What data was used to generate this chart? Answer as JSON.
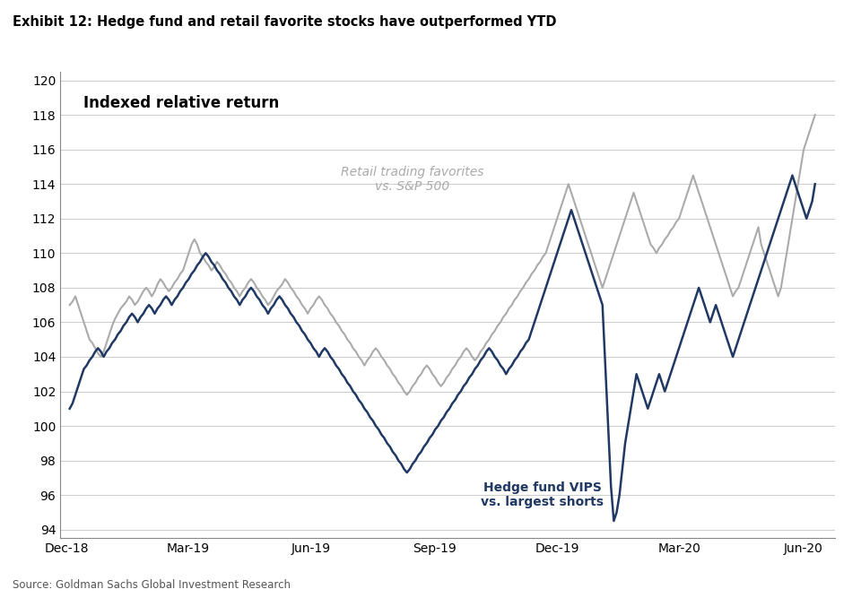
{
  "title": "Exhibit 12: Hedge fund and retail favorite stocks have outperformed YTD",
  "inner_label": "Indexed relative return",
  "source": "Source: Goldman Sachs Global Investment Research",
  "retail_label": "Retail trading favorites\nvs. S&P 500",
  "hf_label": "Hedge fund VIPS\nvs. largest shorts",
  "retail_color": "#aaaaaa",
  "hf_color": "#1f3864",
  "background_color": "#ffffff",
  "ylim": [
    94,
    120
  ],
  "retail": [
    107.0,
    107.2,
    107.5,
    107.0,
    106.5,
    106.0,
    105.5,
    105.0,
    104.8,
    104.5,
    104.2,
    104.0,
    104.3,
    104.8,
    105.3,
    105.8,
    106.2,
    106.5,
    106.8,
    107.0,
    107.2,
    107.5,
    107.3,
    107.0,
    107.2,
    107.5,
    107.8,
    108.0,
    107.8,
    107.5,
    107.8,
    108.2,
    108.5,
    108.3,
    108.0,
    107.8,
    108.0,
    108.3,
    108.5,
    108.8,
    109.0,
    109.5,
    110.0,
    110.5,
    110.8,
    110.5,
    110.0,
    109.8,
    109.5,
    109.3,
    109.0,
    109.2,
    109.5,
    109.3,
    109.0,
    108.8,
    108.5,
    108.3,
    108.0,
    107.8,
    107.5,
    107.8,
    108.0,
    108.3,
    108.5,
    108.3,
    108.0,
    107.8,
    107.5,
    107.3,
    107.0,
    107.2,
    107.5,
    107.8,
    108.0,
    108.2,
    108.5,
    108.3,
    108.0,
    107.8,
    107.5,
    107.3,
    107.0,
    106.8,
    106.5,
    106.8,
    107.0,
    107.3,
    107.5,
    107.3,
    107.0,
    106.8,
    106.5,
    106.3,
    106.0,
    105.8,
    105.5,
    105.3,
    105.0,
    104.8,
    104.5,
    104.3,
    104.0,
    103.8,
    103.5,
    103.8,
    104.0,
    104.3,
    104.5,
    104.3,
    104.0,
    103.8,
    103.5,
    103.3,
    103.0,
    102.8,
    102.5,
    102.3,
    102.0,
    101.8,
    102.0,
    102.3,
    102.5,
    102.8,
    103.0,
    103.3,
    103.5,
    103.3,
    103.0,
    102.8,
    102.5,
    102.3,
    102.5,
    102.8,
    103.0,
    103.3,
    103.5,
    103.8,
    104.0,
    104.3,
    104.5,
    104.3,
    104.0,
    103.8,
    104.0,
    104.3,
    104.5,
    104.8,
    105.0,
    105.3,
    105.5,
    105.8,
    106.0,
    106.3,
    106.5,
    106.8,
    107.0,
    107.3,
    107.5,
    107.8,
    108.0,
    108.3,
    108.5,
    108.8,
    109.0,
    109.3,
    109.5,
    109.8,
    110.0,
    110.5,
    111.0,
    111.5,
    112.0,
    112.5,
    113.0,
    113.5,
    114.0,
    113.5,
    113.0,
    112.5,
    112.0,
    111.5,
    111.0,
    110.5,
    110.0,
    109.5,
    109.0,
    108.5,
    108.0,
    108.5,
    109.0,
    109.5,
    110.0,
    110.5,
    111.0,
    111.5,
    112.0,
    112.5,
    113.0,
    113.5,
    113.0,
    112.5,
    112.0,
    111.5,
    111.0,
    110.5,
    110.3,
    110.0,
    110.3,
    110.5,
    110.8,
    111.0,
    111.3,
    111.5,
    111.8,
    112.0,
    112.5,
    113.0,
    113.5,
    114.0,
    114.5,
    114.0,
    113.5,
    113.0,
    112.5,
    112.0,
    111.5,
    111.0,
    110.5,
    110.0,
    109.5,
    109.0,
    108.5,
    108.0,
    107.5,
    107.8,
    108.0,
    108.5,
    109.0,
    109.5,
    110.0,
    110.5,
    111.0,
    111.5,
    110.5,
    110.0,
    109.5,
    109.0,
    108.5,
    108.0,
    107.5,
    108.0,
    109.0,
    110.0,
    111.0,
    112.0,
    113.0,
    114.0,
    115.0,
    116.0,
    116.5,
    117.0,
    117.5,
    118.0
  ],
  "hf": [
    101.0,
    101.3,
    101.8,
    102.3,
    102.8,
    103.3,
    103.5,
    103.8,
    104.0,
    104.3,
    104.5,
    104.3,
    104.0,
    104.3,
    104.5,
    104.8,
    105.0,
    105.3,
    105.5,
    105.8,
    106.0,
    106.3,
    106.5,
    106.3,
    106.0,
    106.3,
    106.5,
    106.8,
    107.0,
    106.8,
    106.5,
    106.8,
    107.0,
    107.3,
    107.5,
    107.3,
    107.0,
    107.3,
    107.5,
    107.8,
    108.0,
    108.3,
    108.5,
    108.8,
    109.0,
    109.3,
    109.5,
    109.8,
    110.0,
    109.8,
    109.5,
    109.3,
    109.0,
    108.8,
    108.5,
    108.3,
    108.0,
    107.8,
    107.5,
    107.3,
    107.0,
    107.3,
    107.5,
    107.8,
    108.0,
    107.8,
    107.5,
    107.3,
    107.0,
    106.8,
    106.5,
    106.8,
    107.0,
    107.3,
    107.5,
    107.3,
    107.0,
    106.8,
    106.5,
    106.3,
    106.0,
    105.8,
    105.5,
    105.3,
    105.0,
    104.8,
    104.5,
    104.3,
    104.0,
    104.3,
    104.5,
    104.3,
    104.0,
    103.8,
    103.5,
    103.3,
    103.0,
    102.8,
    102.5,
    102.3,
    102.0,
    101.8,
    101.5,
    101.3,
    101.0,
    100.8,
    100.5,
    100.3,
    100.0,
    99.8,
    99.5,
    99.3,
    99.0,
    98.8,
    98.5,
    98.3,
    98.0,
    97.8,
    97.5,
    97.3,
    97.5,
    97.8,
    98.0,
    98.3,
    98.5,
    98.8,
    99.0,
    99.3,
    99.5,
    99.8,
    100.0,
    100.3,
    100.5,
    100.8,
    101.0,
    101.3,
    101.5,
    101.8,
    102.0,
    102.3,
    102.5,
    102.8,
    103.0,
    103.3,
    103.5,
    103.8,
    104.0,
    104.3,
    104.5,
    104.3,
    104.0,
    103.8,
    103.5,
    103.3,
    103.0,
    103.3,
    103.5,
    103.8,
    104.0,
    104.3,
    104.5,
    104.8,
    105.0,
    105.5,
    106.0,
    106.5,
    107.0,
    107.5,
    108.0,
    108.5,
    109.0,
    109.5,
    110.0,
    110.5,
    111.0,
    111.5,
    112.0,
    112.5,
    112.0,
    111.5,
    111.0,
    110.5,
    110.0,
    109.5,
    109.0,
    108.5,
    108.0,
    107.5,
    107.0,
    103.5,
    100.0,
    96.5,
    94.5,
    95.0,
    96.0,
    97.5,
    99.0,
    100.0,
    101.0,
    102.0,
    103.0,
    102.5,
    102.0,
    101.5,
    101.0,
    101.5,
    102.0,
    102.5,
    103.0,
    102.5,
    102.0,
    102.5,
    103.0,
    103.5,
    104.0,
    104.5,
    105.0,
    105.5,
    106.0,
    106.5,
    107.0,
    107.5,
    108.0,
    107.5,
    107.0,
    106.5,
    106.0,
    106.5,
    107.0,
    106.5,
    106.0,
    105.5,
    105.0,
    104.5,
    104.0,
    104.5,
    105.0,
    105.5,
    106.0,
    106.5,
    107.0,
    107.5,
    108.0,
    108.5,
    109.0,
    109.5,
    110.0,
    110.5,
    111.0,
    111.5,
    112.0,
    112.5,
    113.0,
    113.5,
    114.0,
    114.5,
    114.0,
    113.5,
    113.0,
    112.5,
    112.0,
    112.5,
    113.0,
    114.0
  ]
}
